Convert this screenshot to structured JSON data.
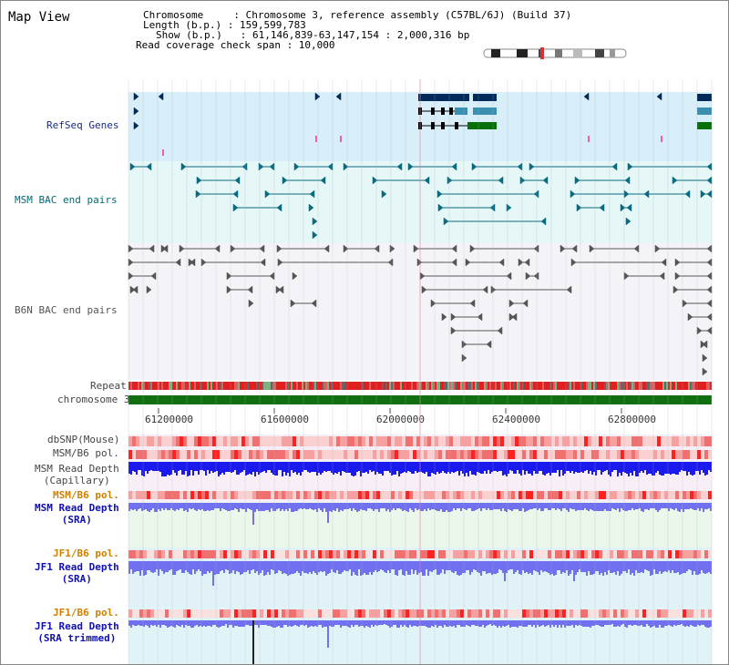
{
  "header": {
    "title": "Map View",
    "lines": [
      "Chromosome     : Chromosome 3, reference assembly (C57BL/6J) (Build 37)",
      "Length (b.p.) : 159,599,783",
      "Show (b.p.)   : 61,146,839-63,147,154 : 2,000,316 bp",
      "Read coverage check span : 10,000"
    ]
  },
  "tracks": {
    "refseq": "RefSeq Genes",
    "msm_bac": "MSM BAC end pairs",
    "b6n_bac": "B6N BAC end pairs",
    "repeat": "Repeat",
    "chromosome": "chromosome 3",
    "dbsnp": "dbSNP(Mouse)",
    "msm_b6_pol": "MSM/B6 pol.",
    "msm_read_depth_cap_1": "MSM Read Depth",
    "msm_read_depth_cap_2": "(Capillary)",
    "msm_b6_pol_2": "MSM/B6 pol.",
    "msm_read_depth_sra_1": "MSM Read Depth",
    "msm_read_depth_sra_2": "(SRA)",
    "jf1_b6_pol": "JF1/B6 pol.",
    "jf1_read_depth_sra_1": "JF1 Read Depth",
    "jf1_read_depth_sra_2": "(SRA)",
    "jf1_b6_pol_2": "JF1/B6 pol.",
    "jf1_read_depth_trim_1": "JF1 Read Depth",
    "jf1_read_depth_trim_2": "(SRA trimmed)"
  },
  "axis": {
    "ticks": [
      "61200000",
      "61600000",
      "62000000",
      "62400000",
      "62800000"
    ]
  },
  "colors": {
    "refseq_bg": "#d8eef8",
    "msm_bg": "#e6f7f7",
    "b6n_bg": "#f2f2f6",
    "chromosome": "#107010",
    "gene_dark": "#002a5c",
    "gene_teal": "#3b8fb0",
    "gene_green": "#087008",
    "msm_feature": "#0a6a80",
    "b6n_feature": "#555555",
    "depth_blue": "#1a1aee",
    "depth_light": "#7070f0"
  }
}
